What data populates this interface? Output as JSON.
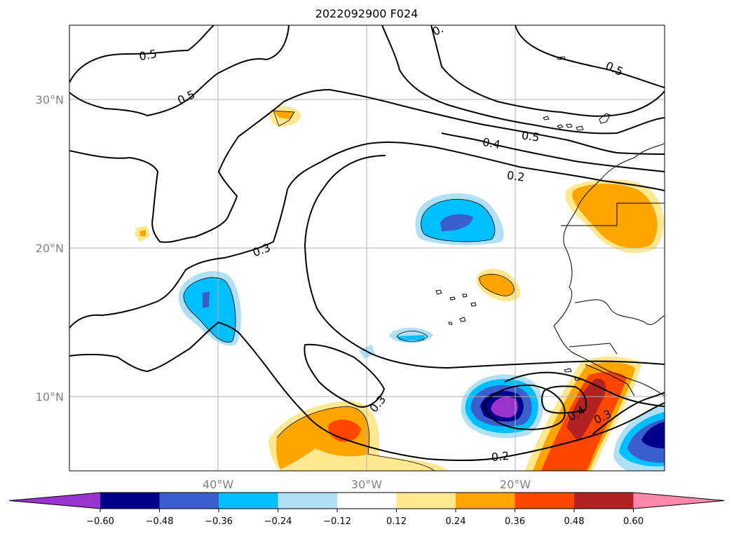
{
  "title": "2022092900 F024",
  "map": {
    "lat_labels": [
      "30°N",
      "20°N",
      "10°N"
    ],
    "lon_labels": [
      "40°W",
      "30°W",
      "20°W"
    ],
    "contour_labels": [
      "0.5",
      "0.5",
      "0.5",
      "0.4",
      "0.5",
      "0.2",
      "0.3",
      "0.3",
      "0.4",
      "0.3",
      "0.2",
      "0."
    ]
  },
  "colorbar": {
    "colors": [
      "#9933cc",
      "#00008b",
      "#3a5fcd",
      "#00bfff",
      "#b0e0f6",
      "#ffffff",
      "#ffe88f",
      "#ffa500",
      "#ff4500",
      "#b22222",
      "#ff88aa"
    ],
    "ticks": [
      "−0.60",
      "−0.48",
      "−0.36",
      "−0.24",
      "−0.12",
      "0.12",
      "0.24",
      "0.36",
      "0.48",
      "0.60"
    ]
  }
}
